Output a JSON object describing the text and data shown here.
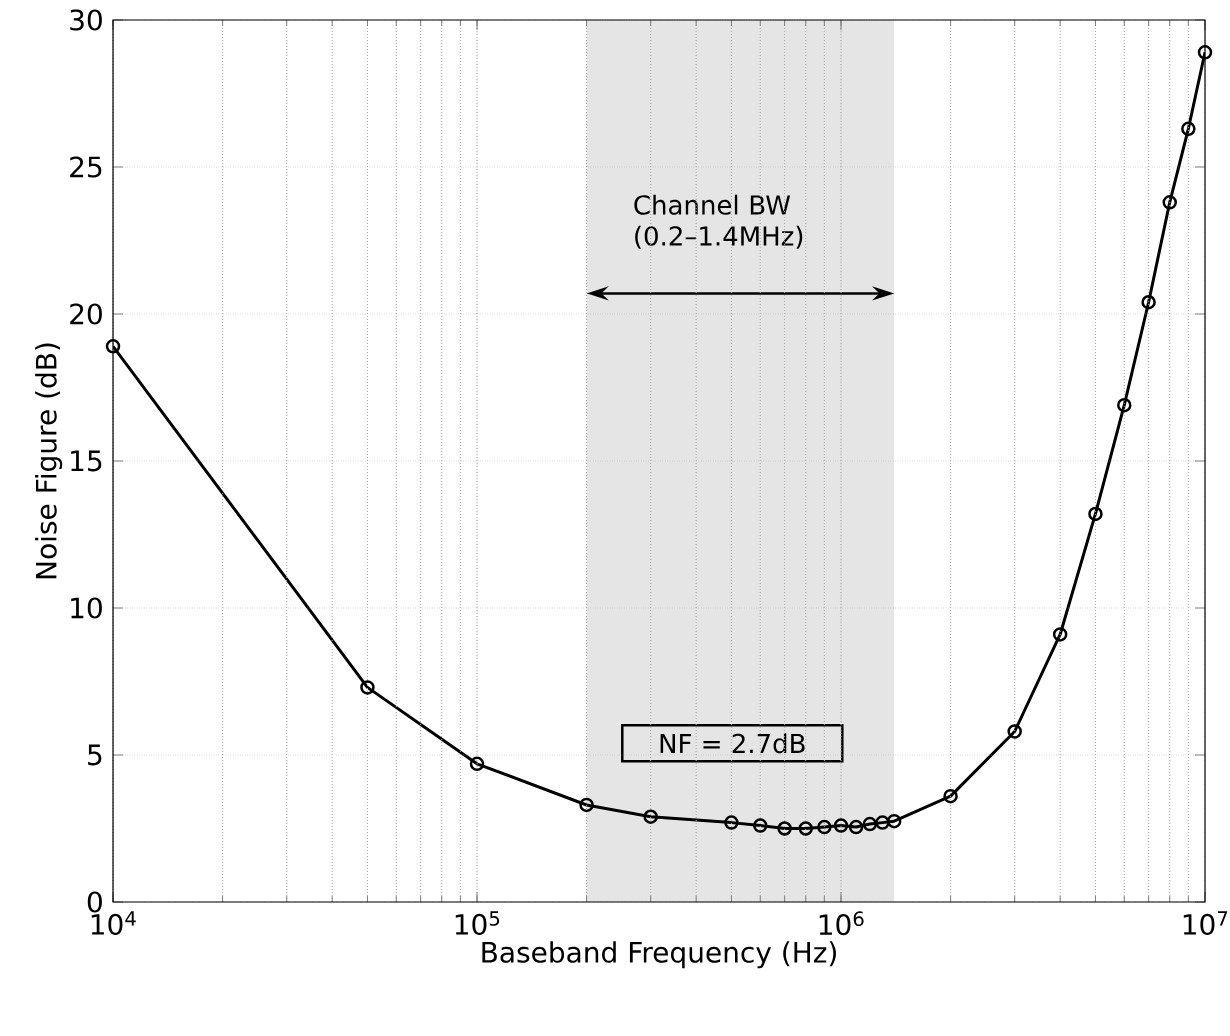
{
  "chart_data": {
    "type": "line",
    "xlabel": "Baseband Frequency (Hz)",
    "ylabel": "Noise Figure (dB)",
    "x": [
      10000,
      50000,
      100000,
      200000,
      300000,
      500000,
      600000,
      700000,
      800000,
      900000,
      1000000,
      1100000,
      1200000,
      1300000,
      1400000,
      2000000,
      3000000,
      4000000,
      5000000,
      6000000,
      7000000,
      8000000,
      9000000,
      10000000
    ],
    "series": [
      {
        "color": "#000000",
        "values": [
          18.9,
          7.3,
          4.7,
          3.3,
          2.9,
          2.7,
          2.6,
          2.5,
          2.5,
          2.55,
          2.6,
          2.55,
          2.65,
          2.7,
          2.75,
          3.6,
          5.8,
          9.1,
          13.2,
          16.9,
          20.4,
          23.8,
          26.3,
          28.9
        ]
      }
    ],
    "log": "x",
    "xlim": [
      10000,
      10000000
    ],
    "ylim": [
      0,
      30
    ],
    "xticks": [
      {
        "value": 10000,
        "label": "10$^{4}$"
      },
      {
        "value": 100000,
        "label": "10$^{5}$"
      },
      {
        "value": 1000000,
        "label": "10$^{6}$"
      },
      {
        "value": 10000000,
        "label": "10$^{7}$"
      }
    ],
    "yticks": [
      0,
      5,
      10,
      15,
      20,
      25,
      30
    ],
    "bands": [
      {
        "axis": "x",
        "from": 200000,
        "to": 1400000,
        "label": "Channel BW (0.2–1.4MHz)",
        "color": "#e5e5e5"
      }
    ],
    "annotations": [
      "NF = 2.7dB"
    ],
    "grid": true,
    "marker": "circle",
    "line_style": "solid"
  }
}
